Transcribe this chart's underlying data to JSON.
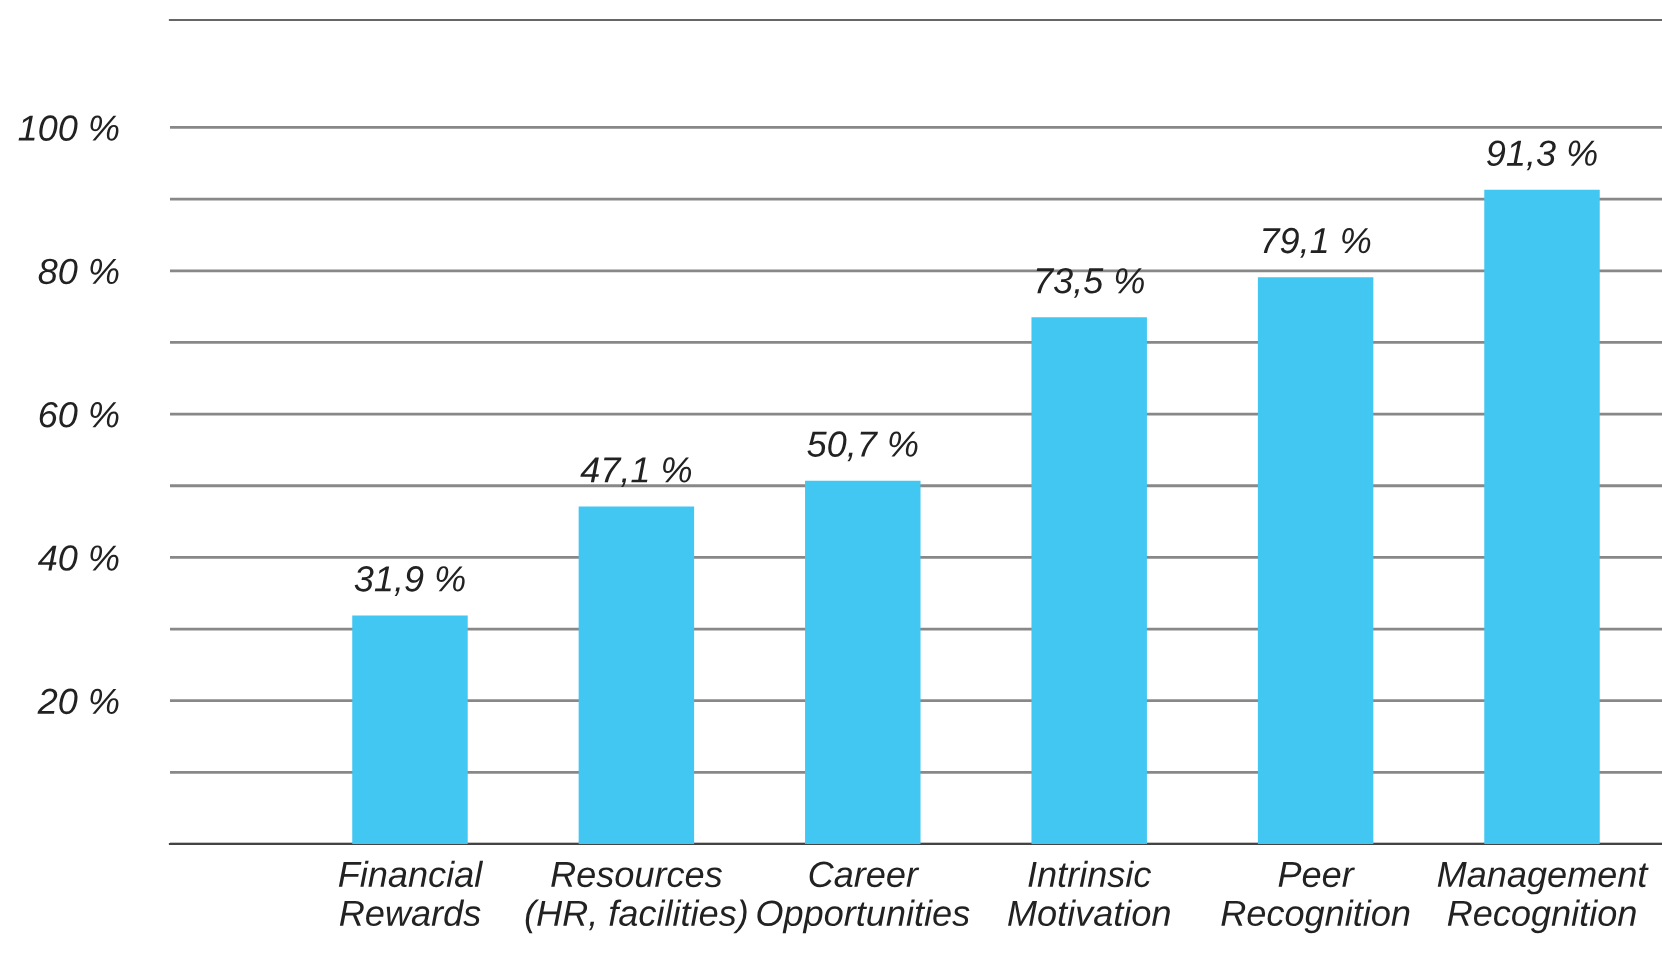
{
  "chart_data": {
    "type": "bar",
    "categories": [
      "Financial\nRewards",
      "Resources\n(HR, facilities)",
      "Career\nOpportunities",
      "Intrinsic\nMotivation",
      "Peer\nRecognition",
      "Management\nRecognition"
    ],
    "values": [
      31.9,
      47.1,
      50.7,
      73.5,
      79.1,
      91.3
    ],
    "value_labels": [
      "31,9 %",
      "47,1 %",
      "50,7 %",
      "73,5 %",
      "79,1 %",
      "91,3 %"
    ],
    "color": "#42c6f2",
    "ylim": [
      0,
      115
    ],
    "yticks": [
      {
        "value": 0,
        "label": null
      },
      {
        "value": 10,
        "label": null
      },
      {
        "value": 20,
        "label": "20 %"
      },
      {
        "value": 30,
        "label": null
      },
      {
        "value": 40,
        "label": "40 %"
      },
      {
        "value": 50,
        "label": null
      },
      {
        "value": 60,
        "label": "60 %"
      },
      {
        "value": 70,
        "label": null
      },
      {
        "value": 80,
        "label": "80 %"
      },
      {
        "value": 90,
        "label": null
      },
      {
        "value": 100,
        "label": "100 %"
      }
    ],
    "grid": "y",
    "legend": false
  }
}
